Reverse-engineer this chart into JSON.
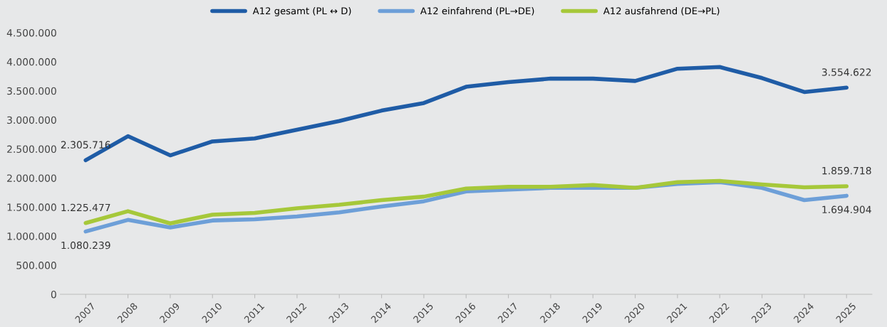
{
  "chart_data": {
    "type": "line",
    "categories": [
      "2007",
      "2008",
      "2009",
      "2010",
      "2011",
      "2012",
      "2013",
      "2014",
      "2015",
      "2016",
      "2017",
      "2018",
      "2019",
      "2020",
      "2021",
      "2022",
      "2023",
      "2024",
      "2025"
    ],
    "series": [
      {
        "name": "A12 gesamt (PL ↔ D)",
        "color": "#1f5ca6",
        "values": [
          2305716,
          2720000,
          2390000,
          2630000,
          2680000,
          2830000,
          2980000,
          3160000,
          3290000,
          3570000,
          3650000,
          3710000,
          3710000,
          3670000,
          3880000,
          3910000,
          3720000,
          3480000,
          3554622
        ],
        "value_labels": [
          "2.305.716",
          null,
          null,
          null,
          null,
          null,
          null,
          null,
          null,
          null,
          null,
          null,
          null,
          null,
          null,
          null,
          null,
          null,
          "3.554.622"
        ]
      },
      {
        "name": "A12 einfahrend (PL→DE)",
        "color": "#6d9fd8",
        "values": [
          1080239,
          1280000,
          1150000,
          1270000,
          1290000,
          1340000,
          1410000,
          1510000,
          1600000,
          1770000,
          1800000,
          1830000,
          1830000,
          1830000,
          1900000,
          1930000,
          1830000,
          1620000,
          1694904
        ],
        "value_labels": [
          "1.080.239",
          null,
          null,
          null,
          null,
          null,
          null,
          null,
          null,
          null,
          null,
          null,
          null,
          null,
          null,
          null,
          null,
          null,
          "1.694.904"
        ]
      },
      {
        "name": "A12 ausfahrend (DE→PL)",
        "color": "#a6c83a",
        "values": [
          1225477,
          1430000,
          1220000,
          1370000,
          1400000,
          1480000,
          1540000,
          1620000,
          1680000,
          1820000,
          1850000,
          1850000,
          1880000,
          1830000,
          1930000,
          1950000,
          1890000,
          1840000,
          1859718
        ],
        "value_labels": [
          "1.225.477",
          null,
          null,
          null,
          null,
          null,
          null,
          null,
          null,
          null,
          null,
          null,
          null,
          null,
          null,
          null,
          null,
          null,
          "1.859.718"
        ]
      }
    ],
    "ylim": [
      0,
      4500000
    ],
    "yticks": [
      {
        "value": 0,
        "label": "0"
      },
      {
        "value": 500000,
        "label": "500.000"
      },
      {
        "value": 1000000,
        "label": "1.000.000"
      },
      {
        "value": 1500000,
        "label": "1.500.000"
      },
      {
        "value": 2000000,
        "label": "2.000.000"
      },
      {
        "value": 2500000,
        "label": "2.500.000"
      },
      {
        "value": 3000000,
        "label": "3.000.000"
      },
      {
        "value": 3500000,
        "label": "3.500.000"
      },
      {
        "value": 4000000,
        "label": "4.000.000"
      },
      {
        "value": 4500000,
        "label": "4.500.000"
      }
    ],
    "grid": false,
    "legend": "top",
    "marker": "none",
    "line_style": "solid"
  }
}
